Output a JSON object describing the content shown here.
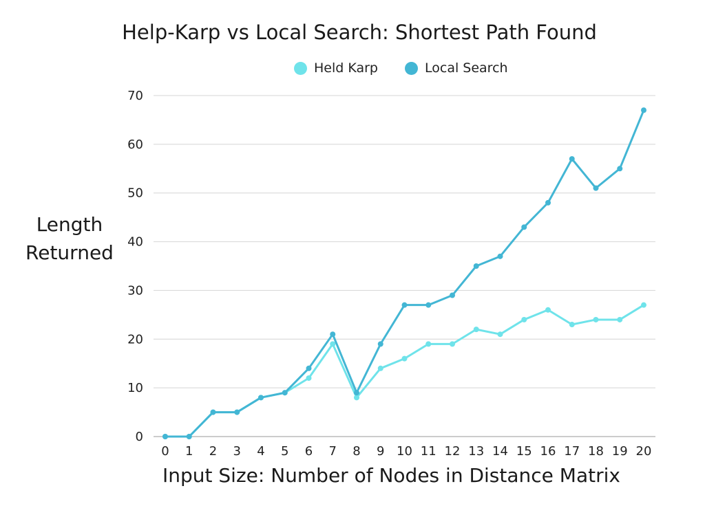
{
  "chart_data": {
    "type": "line",
    "title": "Help-Karp vs Local Search: Shortest Path Found",
    "xlabel": "Input Size: Number of Nodes in Distance Matrix",
    "ylabel_line1": "Length",
    "ylabel_line2": "Returned",
    "x": [
      0,
      1,
      2,
      3,
      4,
      5,
      6,
      7,
      8,
      9,
      10,
      11,
      12,
      13,
      14,
      15,
      16,
      17,
      18,
      19,
      20
    ],
    "ylim": [
      0,
      70
    ],
    "yticks": [
      0,
      10,
      20,
      30,
      40,
      50,
      60,
      70
    ],
    "grid": true,
    "legend_position": "top",
    "series": [
      {
        "name": "Held Karp",
        "color": "#6fe3ea",
        "values": [
          0,
          0,
          5,
          5,
          8,
          9,
          12,
          19,
          8,
          14,
          16,
          19,
          19,
          22,
          21,
          24,
          26,
          23,
          24,
          24,
          27
        ]
      },
      {
        "name": "Local Search",
        "color": "#43b6d4",
        "values": [
          0,
          0,
          5,
          5,
          8,
          9,
          14,
          21,
          9,
          19,
          27,
          27,
          29,
          35,
          37,
          43,
          48,
          57,
          51,
          55,
          67
        ]
      }
    ]
  }
}
